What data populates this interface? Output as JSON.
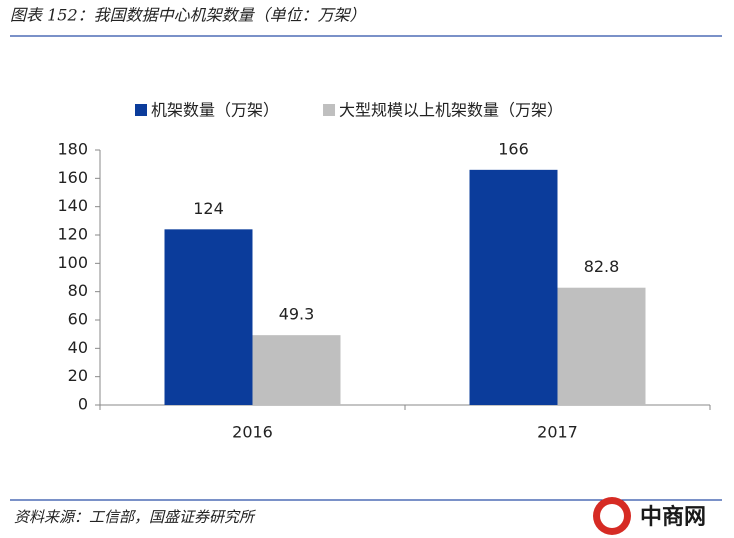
{
  "header": {
    "title": "图表 152：我国数据中心机架数量（单位：万架）"
  },
  "chart_data": {
    "type": "bar",
    "categories": [
      "2016",
      "2017"
    ],
    "series": [
      {
        "name": "机架数量（万架）",
        "color": "#0b3c9b",
        "values": [
          124,
          166
        ]
      },
      {
        "name": "大型规模以上机架数量（万架）",
        "color": "#bfbfbf",
        "values": [
          49.3,
          82.8
        ]
      }
    ],
    "ylim": [
      0,
      180
    ],
    "yticks": [
      0,
      20,
      40,
      60,
      80,
      100,
      120,
      140,
      160,
      180
    ],
    "grid": false,
    "legend": "top"
  },
  "footer": {
    "source": "资料来源：工信部，国盛证券研究所",
    "watermark": "中商网"
  }
}
